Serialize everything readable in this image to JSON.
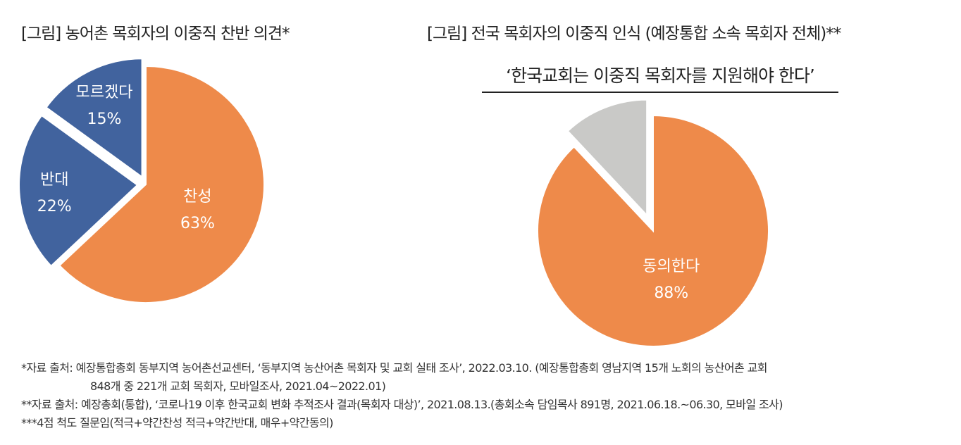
{
  "chart_data": [
    {
      "type": "pie",
      "title": "[그림] 농어촌 목회자의 이중직 찬반 의견*",
      "colors": [
        "#EE8A4A",
        "#41639E",
        "#41639E"
      ],
      "slices": [
        {
          "label": "찬성",
          "value": 63,
          "value_label": "63%"
        },
        {
          "label": "반대",
          "value": 22,
          "value_label": "22%"
        },
        {
          "label": "모르겠다",
          "value": 15,
          "value_label": "15%"
        }
      ]
    },
    {
      "type": "pie",
      "title": "[그림] 전국 목회자의 이중직 인식 (예장통합 소속 목회자 전체)**",
      "subtitle": "‘한국교회는 이중직 목회자를 지원해야 한다’",
      "colors": [
        "#EE8A4A",
        "#C9C9C7"
      ],
      "slices": [
        {
          "label": "동의한다",
          "value": 88,
          "value_label": "88%"
        },
        {
          "label": "",
          "value": 12,
          "value_label": ""
        }
      ]
    }
  ],
  "notes": {
    "line1": "*자료 출처: 예장통합총회 동부지역 농어촌선교센터, ‘동부지역 농산어촌 목회자 및 교회 실태 조사’, 2022.03.10. (예장통합총회 영남지역 15개 노회의 농산어촌 교회",
    "line1b": "848개 중 221개 교회 목회자, 모바일조사, 2021.04~2022.01)",
    "line2": "**자료 출처: 예장총회(통합), ‘코로나19 이후 한국교회 변화 추적조사 결과(목회자 대상)’, 2021.08.13.(총회소속 담임목사 891명, 2021.06.18.~06.30, 모바일 조사)",
    "line3": "***4점 척도 질문임(적극+약간찬성 적극+약간반대, 매우+약간동의)"
  }
}
